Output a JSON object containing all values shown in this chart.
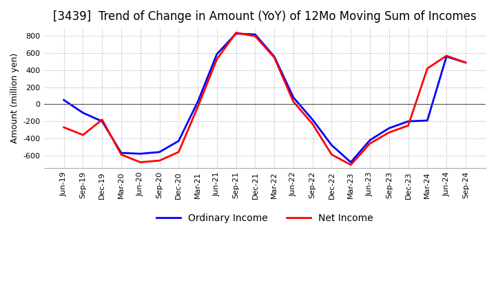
{
  "title": "[3439]  Trend of Change in Amount (YoY) of 12Mo Moving Sum of Incomes",
  "ylabel": "Amount (million yen)",
  "x_labels": [
    "Jun-19",
    "Sep-19",
    "Dec-19",
    "Mar-20",
    "Jun-20",
    "Sep-20",
    "Dec-20",
    "Mar-21",
    "Jun-21",
    "Sep-21",
    "Dec-21",
    "Mar-22",
    "Jun-22",
    "Sep-22",
    "Dec-22",
    "Mar-23",
    "Jun-23",
    "Sep-23",
    "Dec-23",
    "Mar-24",
    "Jun-24",
    "Sep-24"
  ],
  "ordinary_income": [
    50,
    -100,
    -200,
    -570,
    -580,
    -560,
    -430,
    30,
    590,
    830,
    820,
    560,
    80,
    -180,
    -480,
    -680,
    -420,
    -280,
    -200,
    -190,
    560,
    490
  ],
  "net_income": [
    -270,
    -360,
    -180,
    -590,
    -680,
    -660,
    -560,
    -30,
    530,
    840,
    800,
    550,
    30,
    -230,
    -590,
    -710,
    -460,
    -330,
    -250,
    420,
    570,
    490
  ],
  "ordinary_color": "#0000ff",
  "net_color": "#ff0000",
  "ylim": [
    -750,
    900
  ],
  "yticks": [
    -600,
    -400,
    -200,
    0,
    200,
    400,
    600,
    800
  ],
  "bg_color": "#ffffff",
  "grid_color": "#aaaaaa",
  "title_fontsize": 12,
  "label_fontsize": 9
}
